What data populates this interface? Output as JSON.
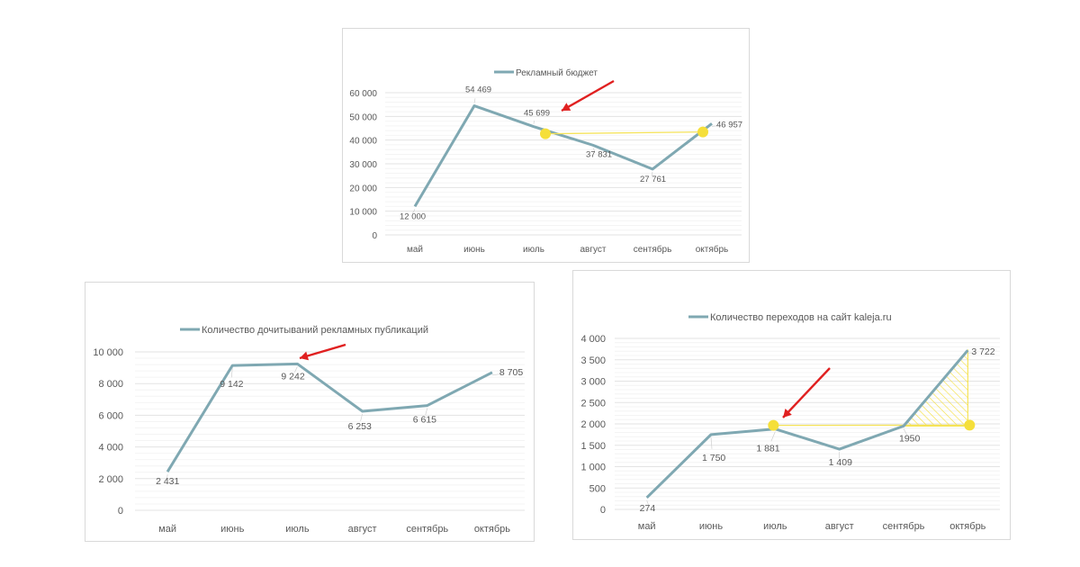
{
  "chart_data": [
    {
      "type": "line",
      "categories": [
        "май",
        "июнь",
        "июль",
        "август",
        "сентябрь",
        "октябрь"
      ],
      "series": [
        {
          "name": "Рекламный бюджет",
          "values": [
            12000,
            54469,
            45699,
            37831,
            27761,
            46957
          ]
        }
      ],
      "data_labels": [
        "12 000",
        "54 469",
        "45 699",
        "37 831",
        "27 761",
        "46 957"
      ],
      "y_ticks": [
        "0",
        "10 000",
        "20 000",
        "30 000",
        "40 000",
        "50 000",
        "60 000"
      ],
      "ylim": [
        0,
        60000
      ],
      "legend": "top",
      "grid": true
    },
    {
      "type": "line",
      "categories": [
        "май",
        "июнь",
        "июль",
        "август",
        "сентябрь",
        "октябрь"
      ],
      "series": [
        {
          "name": "Количество дочитываний рекламных публикаций",
          "values": [
            2431,
            9142,
            9242,
            6253,
            6615,
            8705
          ]
        }
      ],
      "data_labels": [
        "2 431",
        "9 142",
        "9 242",
        "6 253",
        "6 615",
        "8 705"
      ],
      "y_ticks": [
        "0",
        "2 000",
        "4 000",
        "6 000",
        "8 000",
        "10 000"
      ],
      "ylim": [
        0,
        10000
      ],
      "legend": "top",
      "grid": true
    },
    {
      "type": "line",
      "categories": [
        "май",
        "июнь",
        "июль",
        "август",
        "сентябрь",
        "октябрь"
      ],
      "series": [
        {
          "name": "Количество переходов на сайт kaleja.ru",
          "values": [
            274,
            1750,
            1881,
            1409,
            1950,
            3722
          ]
        }
      ],
      "data_labels": [
        "274",
        "1 750",
        "1 881",
        "1 409",
        "1950",
        "3 722"
      ],
      "y_ticks": [
        "0",
        "500",
        "1 000",
        "1 500",
        "2 000",
        "2 500",
        "3 000",
        "3 500",
        "4 000"
      ],
      "ylim": [
        0,
        4000
      ],
      "legend": "top",
      "grid": true
    }
  ],
  "colors": {
    "line": "#7fa8b2",
    "grid": "#eeeeee",
    "text": "#595959",
    "arrow": "#e02020",
    "highlight": "#f5df3a",
    "highlight_line": "#f5e35a"
  }
}
